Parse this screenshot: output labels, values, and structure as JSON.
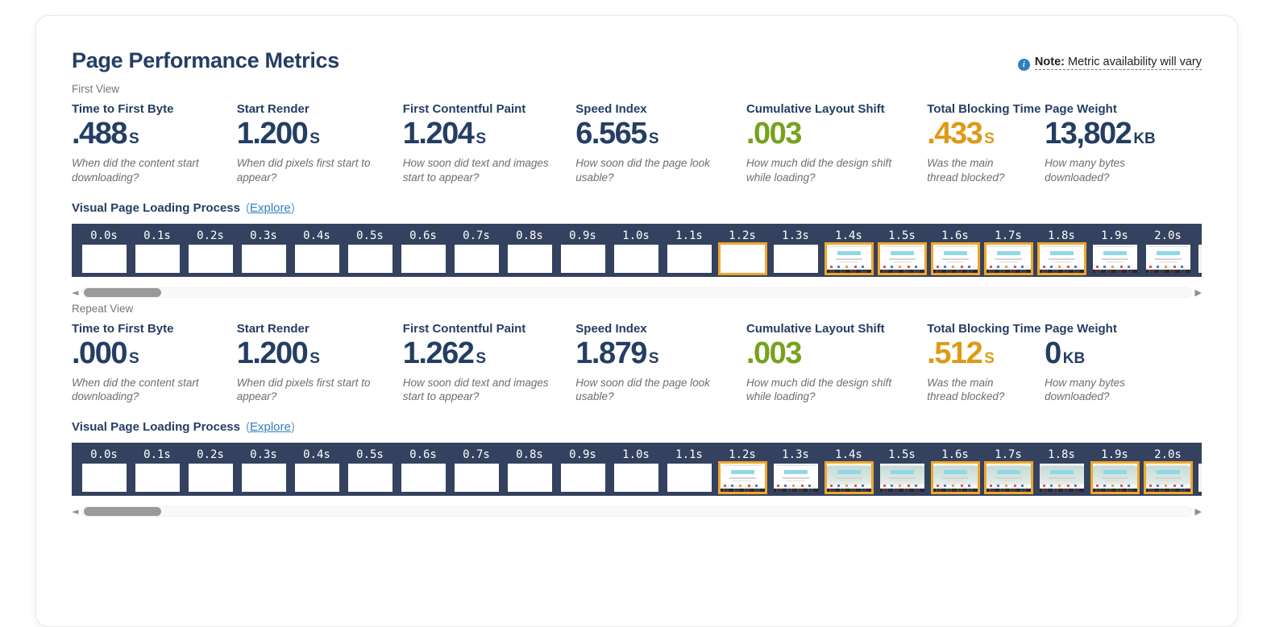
{
  "page": {
    "title": "Page Performance Metrics",
    "note": {
      "label": "Note:",
      "text": "Metric availability will vary"
    }
  },
  "icons": {
    "info": "i",
    "scroll_left": "◄",
    "scroll_right": "▶"
  },
  "colors": {
    "navy": "#243e63",
    "green": "#76a21e",
    "orange": "#dd9a15",
    "link_blue": "#2d7fc1",
    "info_blue": "#2d7fc1",
    "filmstrip_bg": "#34425f",
    "highlight_orange": "#f0a62a"
  },
  "sections": [
    {
      "view_label": "First View",
      "metrics": [
        {
          "label": "Time to First Byte",
          "value": ".488",
          "unit": "s",
          "color": "navy",
          "description": "When did the content start downloading?"
        },
        {
          "label": "Start Render",
          "value": "1.200",
          "unit": "s",
          "color": "navy",
          "description": "When did pixels first start to appear?"
        },
        {
          "label": "First Contentful Paint",
          "value": "1.204",
          "unit": "s",
          "color": "navy",
          "description": "How soon did text and images start to appear?"
        },
        {
          "label": "Speed Index",
          "value": "6.565",
          "unit": "s",
          "color": "navy",
          "description": "How soon did the page look usable?"
        },
        {
          "label": "Cumulative Layout Shift",
          "value": ".003",
          "unit": "",
          "color": "green",
          "description": "How much did the design shift while loading?"
        },
        {
          "label": "Total Blocking Time",
          "value": ".433",
          "unit": "s",
          "color": "orange",
          "description": "Was the main thread blocked?"
        },
        {
          "label": "Page Weight",
          "value": "13,802",
          "unit": "KB",
          "color": "navy",
          "description": "How many bytes downloaded?"
        }
      ],
      "filmstrip": {
        "heading": "Visual Page Loading Process",
        "explore_open": "(",
        "explore_label": "Explore",
        "explore_close": ")",
        "frames": [
          {
            "time": "0.0s",
            "state": "blank",
            "highlighted": false
          },
          {
            "time": "0.1s",
            "state": "blank",
            "highlighted": false
          },
          {
            "time": "0.2s",
            "state": "blank",
            "highlighted": false
          },
          {
            "time": "0.3s",
            "state": "blank",
            "highlighted": false
          },
          {
            "time": "0.4s",
            "state": "blank",
            "highlighted": false
          },
          {
            "time": "0.5s",
            "state": "blank",
            "highlighted": false
          },
          {
            "time": "0.6s",
            "state": "blank",
            "highlighted": false
          },
          {
            "time": "0.7s",
            "state": "blank",
            "highlighted": false
          },
          {
            "time": "0.8s",
            "state": "blank",
            "highlighted": false
          },
          {
            "time": "0.9s",
            "state": "blank",
            "highlighted": false
          },
          {
            "time": "1.0s",
            "state": "blank",
            "highlighted": false
          },
          {
            "time": "1.1s",
            "state": "blank",
            "highlighted": false
          },
          {
            "time": "1.2s",
            "state": "blank",
            "highlighted": true
          },
          {
            "time": "1.3s",
            "state": "blank",
            "highlighted": false
          },
          {
            "time": "1.4s",
            "state": "partial",
            "highlighted": true
          },
          {
            "time": "1.5s",
            "state": "partial",
            "highlighted": true
          },
          {
            "time": "1.6s",
            "state": "partial",
            "highlighted": true
          },
          {
            "time": "1.7s",
            "state": "partial",
            "highlighted": true
          },
          {
            "time": "1.8s",
            "state": "partial",
            "highlighted": true
          },
          {
            "time": "1.9s",
            "state": "partial",
            "highlighted": false
          },
          {
            "time": "2.0s",
            "state": "partial",
            "highlighted": false
          }
        ]
      }
    },
    {
      "view_label": "Repeat View",
      "metrics": [
        {
          "label": "Time to First Byte",
          "value": ".000",
          "unit": "s",
          "color": "navy",
          "description": "When did the content start downloading?"
        },
        {
          "label": "Start Render",
          "value": "1.200",
          "unit": "s",
          "color": "navy",
          "description": "When did pixels first start to appear?"
        },
        {
          "label": "First Contentful Paint",
          "value": "1.262",
          "unit": "s",
          "color": "navy",
          "description": "How soon did text and images start to appear?"
        },
        {
          "label": "Speed Index",
          "value": "1.879",
          "unit": "s",
          "color": "navy",
          "description": "How soon did the page look usable?"
        },
        {
          "label": "Cumulative Layout Shift",
          "value": ".003",
          "unit": "",
          "color": "green",
          "description": "How much did the design shift while loading?"
        },
        {
          "label": "Total Blocking Time",
          "value": ".512",
          "unit": "s",
          "color": "orange",
          "description": "Was the main thread blocked?"
        },
        {
          "label": "Page Weight",
          "value": "0",
          "unit": "KB",
          "color": "navy",
          "description": "How many bytes downloaded?"
        }
      ],
      "filmstrip": {
        "heading": "Visual Page Loading Process",
        "explore_open": "(",
        "explore_label": "Explore",
        "explore_close": ")",
        "frames": [
          {
            "time": "0.0s",
            "state": "blank",
            "highlighted": false
          },
          {
            "time": "0.1s",
            "state": "blank",
            "highlighted": false
          },
          {
            "time": "0.2s",
            "state": "blank",
            "highlighted": false
          },
          {
            "time": "0.3s",
            "state": "blank",
            "highlighted": false
          },
          {
            "time": "0.4s",
            "state": "blank",
            "highlighted": false
          },
          {
            "time": "0.5s",
            "state": "blank",
            "highlighted": false
          },
          {
            "time": "0.6s",
            "state": "blank",
            "highlighted": false
          },
          {
            "time": "0.7s",
            "state": "blank",
            "highlighted": false
          },
          {
            "time": "0.8s",
            "state": "blank",
            "highlighted": false
          },
          {
            "time": "0.9s",
            "state": "blank",
            "highlighted": false
          },
          {
            "time": "1.0s",
            "state": "blank",
            "highlighted": false
          },
          {
            "time": "1.1s",
            "state": "blank",
            "highlighted": false
          },
          {
            "time": "1.2s",
            "state": "partial",
            "highlighted": true
          },
          {
            "time": "1.3s",
            "state": "partial",
            "highlighted": false
          },
          {
            "time": "1.4s",
            "state": "hero",
            "highlighted": true
          },
          {
            "time": "1.5s",
            "state": "hero",
            "highlighted": false
          },
          {
            "time": "1.6s",
            "state": "hero",
            "highlighted": true
          },
          {
            "time": "1.7s",
            "state": "hero",
            "highlighted": true
          },
          {
            "time": "1.8s",
            "state": "hero",
            "highlighted": false
          },
          {
            "time": "1.9s",
            "state": "hero",
            "highlighted": true
          },
          {
            "time": "2.0s",
            "state": "hero",
            "highlighted": true
          }
        ]
      }
    }
  ]
}
